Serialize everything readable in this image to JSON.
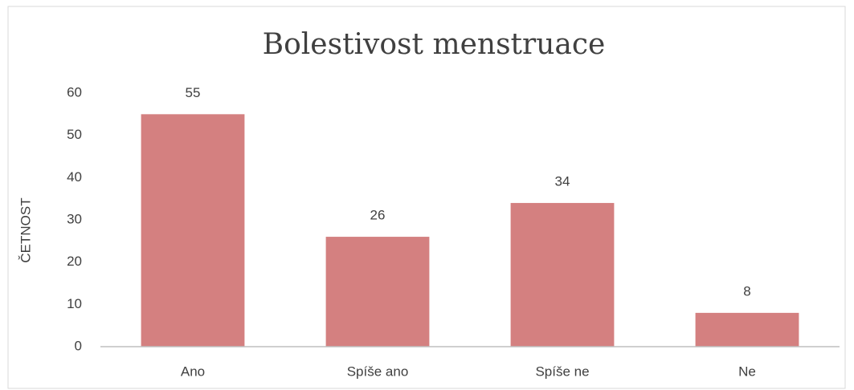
{
  "chart_data": {
    "type": "bar",
    "title": "Bolestivost menstruace",
    "y_label": "ČETNOST",
    "categories": [
      "Ano",
      "Spíše ano",
      "Spíše ne",
      "Ne"
    ],
    "values": [
      55,
      26,
      34,
      8
    ],
    "color": "#d48080",
    "ylim": [
      0,
      60
    ],
    "yticks": [
      0,
      10,
      20,
      30,
      40,
      50,
      60
    ],
    "grid": false
  }
}
